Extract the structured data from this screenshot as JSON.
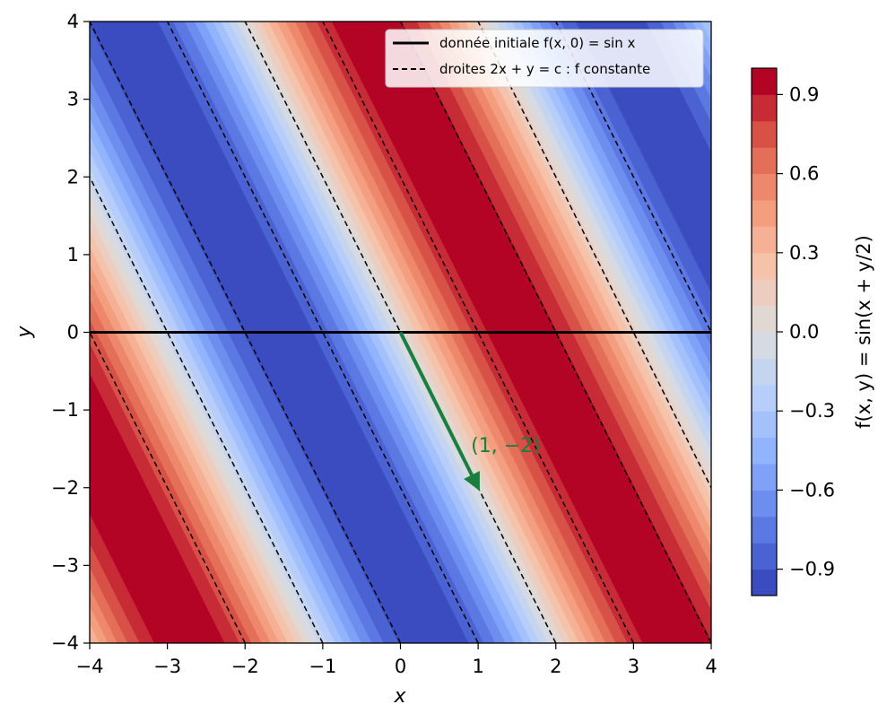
{
  "chart_data": {
    "type": "heatmap",
    "function_label": "f(x, y) = sin(x + y/2)",
    "x_range": [
      -4,
      4
    ],
    "y_range": [
      -4,
      4
    ],
    "xlabel": "x",
    "ylabel": "y",
    "x_ticks": [
      "−4",
      "−3",
      "−2",
      "−1",
      "0",
      "1",
      "2",
      "3",
      "4"
    ],
    "y_ticks": [
      "−4",
      "−3",
      "−2",
      "−1",
      "0",
      "1",
      "2",
      "3",
      "4"
    ],
    "colormap": "coolwarm",
    "levels": [
      -1.0,
      -0.9,
      -0.8,
      -0.7,
      -0.6,
      -0.5,
      -0.4,
      -0.3,
      -0.2,
      -0.1,
      0.0,
      0.1,
      0.2,
      0.3,
      0.4,
      0.5,
      0.6,
      0.7,
      0.8,
      0.9,
      1.0
    ],
    "colorbar": {
      "label": "f(x, y) = sin(x + y/2)",
      "range": [
        -1.0,
        1.0
      ],
      "ticks": [
        {
          "value": -0.9,
          "label": "−0.9"
        },
        {
          "value": -0.6,
          "label": "−0.6"
        },
        {
          "value": -0.3,
          "label": "−0.3"
        },
        {
          "value": 0.0,
          "label": "0.0"
        },
        {
          "value": 0.3,
          "label": "0.3"
        },
        {
          "value": 0.6,
          "label": "0.6"
        },
        {
          "value": 0.9,
          "label": "0.9"
        }
      ]
    },
    "initial_data_line": {
      "y": 0,
      "label": "donnée initiale f(x, 0) = sin x",
      "color": "#000000"
    },
    "characteristic_lines": {
      "label": "droites 2x + y = c : f constante",
      "c_values": [
        -8,
        -6,
        -4,
        -2,
        0,
        2,
        4,
        6,
        8
      ],
      "color": "#000000"
    },
    "arrow": {
      "from": [
        0,
        0
      ],
      "to": [
        1,
        -2
      ],
      "label": "(1, −2)",
      "color": "#1a7f3c"
    },
    "legend_position": "upper right",
    "grid": false
  }
}
